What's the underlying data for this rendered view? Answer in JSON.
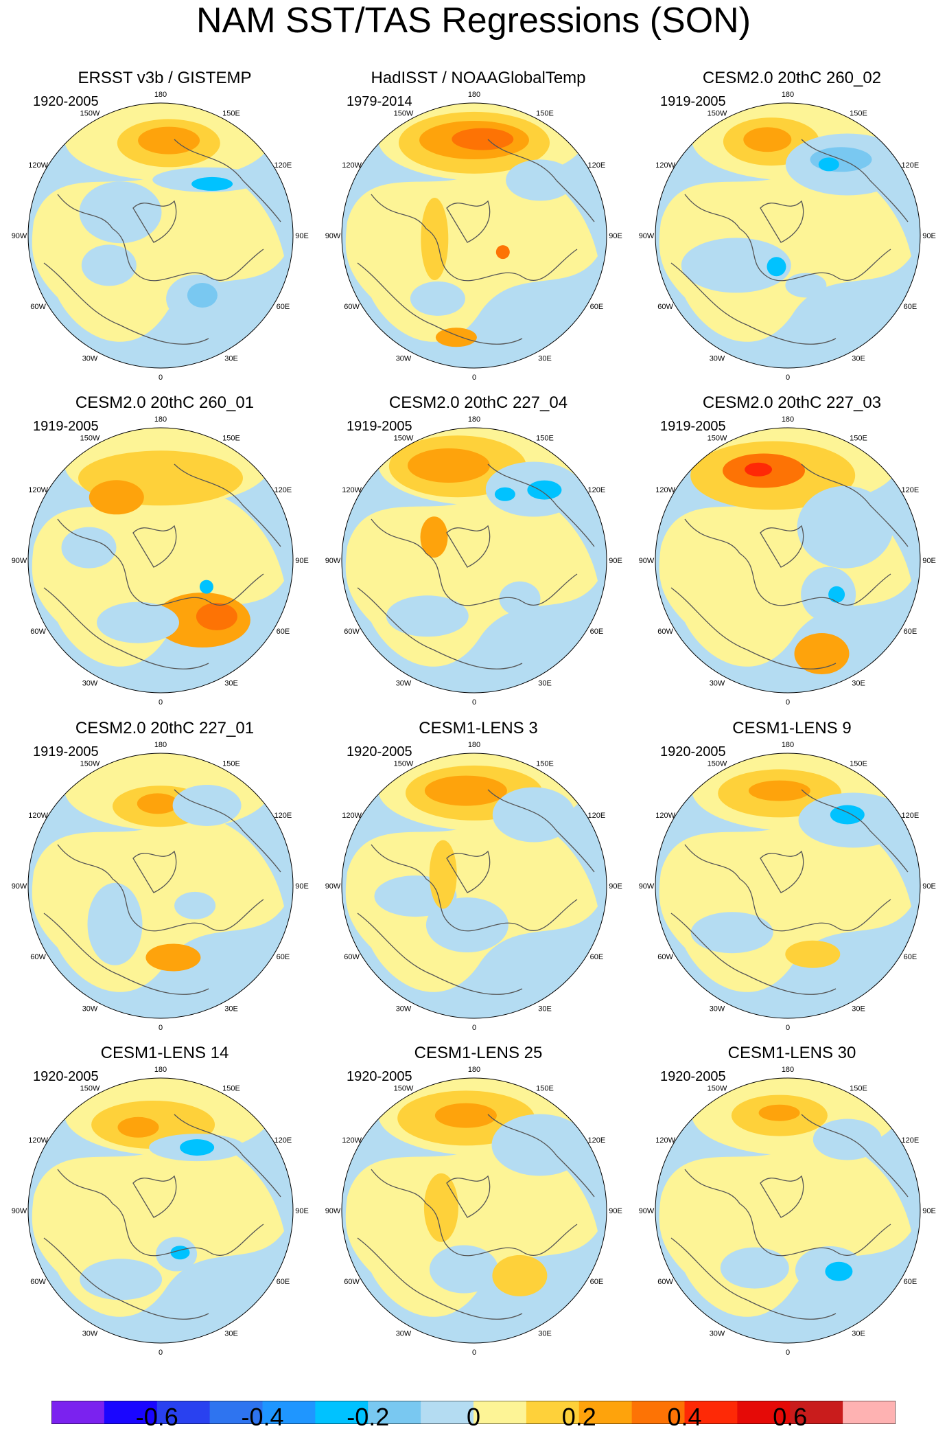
{
  "title": "NAM SST/TAS Regressions (SON)",
  "colors": {
    "colorbar": [
      "#7b22ef",
      "#1a06ff",
      "#2941f0",
      "#2e74f0",
      "#1f96ff",
      "#00c2ff",
      "#79c8f1",
      "#b4dcf2",
      "#fdf496",
      "#fed13a",
      "#fea30c",
      "#fd7305",
      "#fe2906",
      "#e50a07",
      "#c91c1c",
      "#feb2b2"
    ],
    "land_outline": "#555555"
  },
  "longitude_labels": [
    "180",
    "150E",
    "120E",
    "90E",
    "60E",
    "30E",
    "0",
    "30W",
    "60W",
    "90W",
    "120W",
    "150W"
  ],
  "colorbar_labels": [
    "-0.6",
    "-0.4",
    "-0.2",
    "0",
    "0.2",
    "0.4",
    "0.6"
  ],
  "chart_data": [
    {
      "type": "heatmap",
      "title": "ERSST v3b / GISTEMP",
      "period": "1920-2005",
      "projection": "north-polar stereographic",
      "dominant": "positive north Pacific, negative subpolar N. Atlantic"
    },
    {
      "type": "heatmap",
      "title": "HadISST / NOAAGlobalTemp",
      "period": "1979-2014",
      "projection": "north-polar stereographic",
      "dominant": "strong positive north Pacific"
    },
    {
      "type": "heatmap",
      "title": "CESM2.0 20thC 260_02",
      "period": "1919-2005",
      "projection": "north-polar stereographic",
      "dominant": "positive north Pacific, negative NE Pacific"
    },
    {
      "type": "heatmap",
      "title": "CESM2.0 20thC 260_01",
      "period": "1919-2005",
      "projection": "north-polar stereographic",
      "dominant": "positive north Pacific and N. Atlantic"
    },
    {
      "type": "heatmap",
      "title": "CESM2.0 20thC 227_04",
      "period": "1919-2005",
      "projection": "north-polar stereographic",
      "dominant": "positive north Pacific, negative NE Pacific"
    },
    {
      "type": "heatmap",
      "title": "CESM2.0 20thC 227_03",
      "period": "1919-2005",
      "projection": "north-polar stereographic",
      "dominant": "strong positive NW Pacific"
    },
    {
      "type": "heatmap",
      "title": "CESM2.0 20thC 227_01",
      "period": "1919-2005",
      "projection": "north-polar stereographic",
      "dominant": "positive north Pacific"
    },
    {
      "type": "heatmap",
      "title": "CESM1-LENS 3",
      "period": "1920-2005",
      "projection": "north-polar stereographic",
      "dominant": "positive north Pacific"
    },
    {
      "type": "heatmap",
      "title": "CESM1-LENS 9",
      "period": "1920-2005",
      "projection": "north-polar stereographic",
      "dominant": "positive north Pacific, negative NE Pacific"
    },
    {
      "type": "heatmap",
      "title": "CESM1-LENS 14",
      "period": "1920-2005",
      "projection": "north-polar stereographic",
      "dominant": "positive north Pacific, negative Alaska"
    },
    {
      "type": "heatmap",
      "title": "CESM1-LENS 25",
      "period": "1920-2005",
      "projection": "north-polar stereographic",
      "dominant": "positive north Pacific"
    },
    {
      "type": "heatmap",
      "title": "CESM1-LENS 30",
      "period": "1920-2005",
      "projection": "north-polar stereographic",
      "dominant": "positive north Pacific, negative Labrador Sea"
    }
  ]
}
